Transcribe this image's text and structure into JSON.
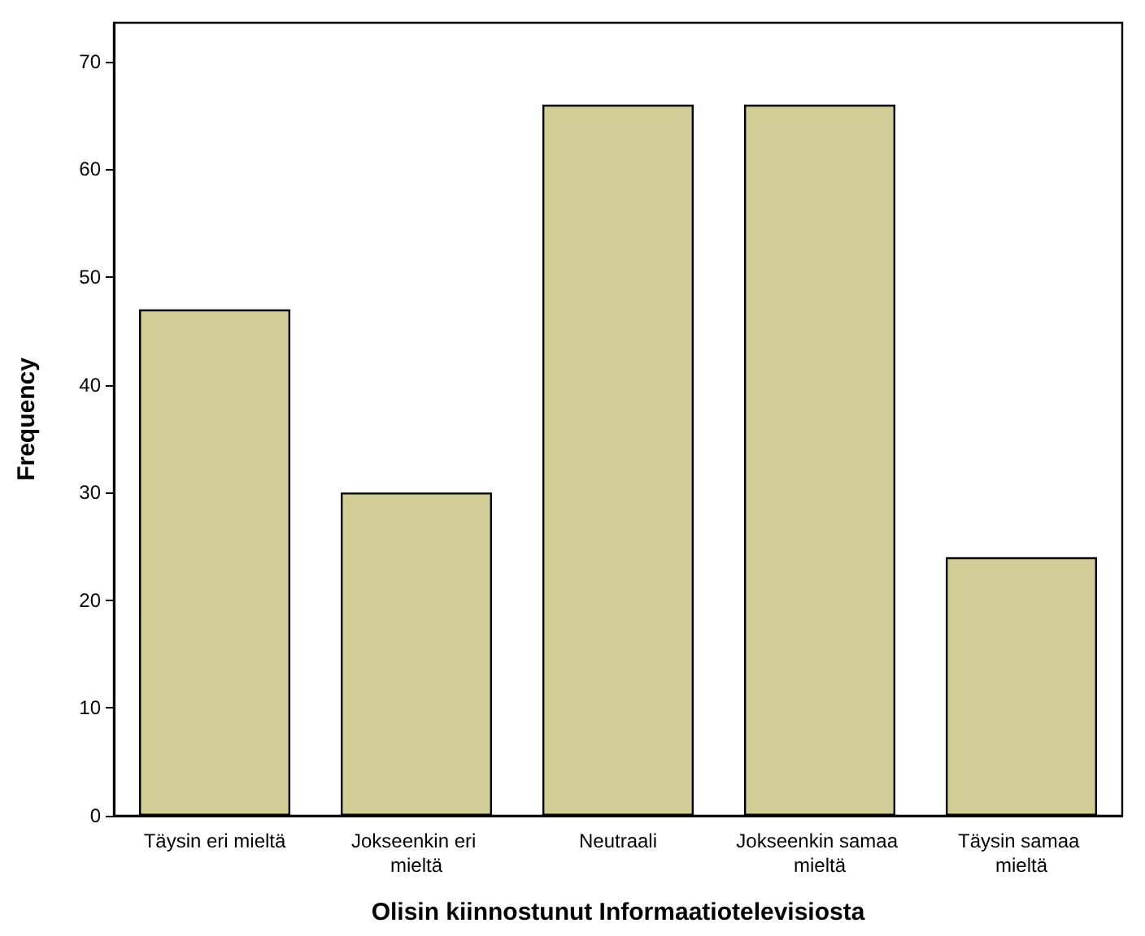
{
  "chart_data": {
    "type": "bar",
    "xlabel": "Olisin kiinnostunut Informaatiotelevisiosta",
    "ylabel": "Frequency",
    "categories": [
      "Täysin eri mieltä",
      "Jokseenkin eri mieltä",
      "Neutraali",
      "Jokseenkin samaa mieltä",
      "Täysin samaa mieltä"
    ],
    "values": [
      47,
      30,
      66,
      66,
      24
    ],
    "color": "#d3ce97",
    "ylim": [
      0,
      73.6
    ],
    "yticks": [
      0,
      10,
      20,
      30,
      40,
      50,
      60,
      70
    ],
    "grid": false
  }
}
